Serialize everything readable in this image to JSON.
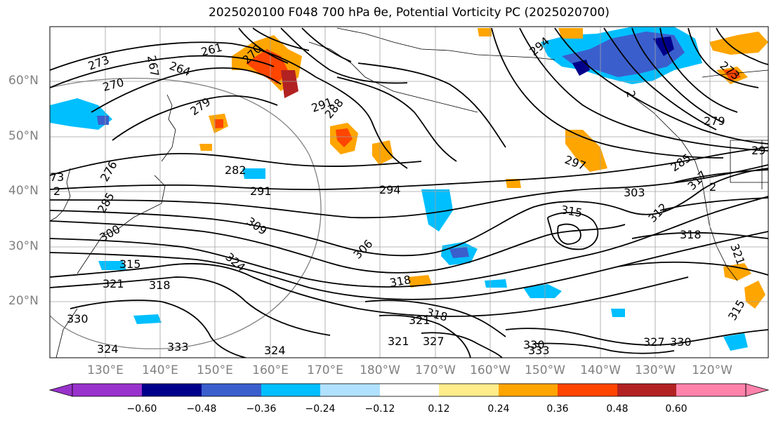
{
  "title": "2025020100 F048 700 hPa θe, Potential Vorticity PC (2025020700)",
  "lat_labels": [
    "60°N",
    "50°N",
    "40°N",
    "30°N",
    "20°N"
  ],
  "lon_labels": [
    "130°E",
    "140°E",
    "150°E",
    "160°E",
    "170°E",
    "180°W",
    "170°W",
    "160°W",
    "150°W",
    "140°W",
    "130°W",
    "120°W"
  ],
  "contour_labels": [
    "273",
    "270",
    "267",
    "264",
    "261",
    "270",
    "279",
    "291",
    "288",
    "282",
    "291",
    "294",
    "294",
    "297",
    "276",
    "285",
    "300",
    "309",
    "306",
    "315",
    "315",
    "318",
    "321",
    "324",
    "318",
    "318",
    "321",
    "321",
    "327",
    "330",
    "330",
    "333",
    "324",
    "324",
    "327",
    "330",
    "333",
    "279",
    "273",
    "285",
    "303",
    "312",
    "317",
    "318",
    "321",
    "315",
    "29",
    "73",
    "2",
    "2",
    "2"
  ],
  "colorbar": {
    "ticks": [
      "−0.60",
      "−0.48",
      "−0.36",
      "−0.24",
      "−0.12",
      "0.12",
      "0.24",
      "0.36",
      "0.48",
      "0.60"
    ],
    "colors": [
      "#9932cc",
      "#00008b",
      "#3a5fcd",
      "#00bfff",
      "#b0e2ff",
      "#ffffff",
      "#ffec8b",
      "#ffa500",
      "#ff4500",
      "#b22222",
      "#ff82ab"
    ]
  }
}
